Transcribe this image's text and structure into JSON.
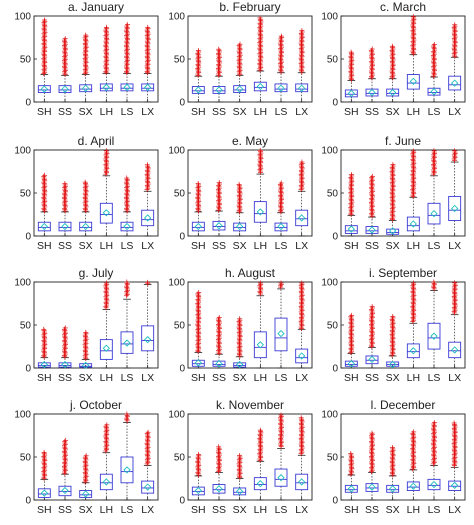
{
  "colors": {
    "box": "#3a3ad6",
    "outlier": "#e01010",
    "mean_marker": "#1fbfbf",
    "whisker": "#222222"
  },
  "chart_data": [
    {
      "type": "box",
      "title": "a. January",
      "categories": [
        "SH",
        "SS",
        "SX",
        "LH",
        "LS",
        "LX"
      ],
      "ylim": [
        0,
        100
      ],
      "yticks": [
        0,
        50,
        100
      ],
      "boxes": [
        {
          "q1": 11,
          "median": 14,
          "q3": 19,
          "whisker_low": 0,
          "whisker_high": 32,
          "mean": 15,
          "outliers_from": 33,
          "outliers_to": 96
        },
        {
          "q1": 11,
          "median": 14,
          "q3": 19,
          "whisker_low": 0,
          "whisker_high": 31,
          "mean": 15,
          "outliers_from": 32,
          "outliers_to": 74
        },
        {
          "q1": 12,
          "median": 15,
          "q3": 20,
          "whisker_low": 0,
          "whisker_high": 32,
          "mean": 16,
          "outliers_from": 33,
          "outliers_to": 78
        },
        {
          "q1": 13,
          "median": 16,
          "q3": 21,
          "whisker_low": 0,
          "whisker_high": 33,
          "mean": 17,
          "outliers_from": 34,
          "outliers_to": 88
        },
        {
          "q1": 13,
          "median": 16,
          "q3": 21,
          "whisker_low": 0,
          "whisker_high": 33,
          "mean": 17,
          "outliers_from": 34,
          "outliers_to": 90
        },
        {
          "q1": 13,
          "median": 16,
          "q3": 21,
          "whisker_low": 0,
          "whisker_high": 33,
          "mean": 17,
          "outliers_from": 34,
          "outliers_to": 88
        }
      ]
    },
    {
      "type": "box",
      "title": "b. February",
      "categories": [
        "SH",
        "SS",
        "SX",
        "LH",
        "LS",
        "LX"
      ],
      "ylim": [
        0,
        100
      ],
      "yticks": [
        0,
        50,
        100
      ],
      "boxes": [
        {
          "q1": 10,
          "median": 13,
          "q3": 18,
          "whisker_low": 0,
          "whisker_high": 30,
          "mean": 14,
          "outliers_from": 31,
          "outliers_to": 60
        },
        {
          "q1": 10,
          "median": 13,
          "q3": 18,
          "whisker_low": 0,
          "whisker_high": 30,
          "mean": 14,
          "outliers_from": 31,
          "outliers_to": 62
        },
        {
          "q1": 11,
          "median": 14,
          "q3": 19,
          "whisker_low": 0,
          "whisker_high": 31,
          "mean": 15,
          "outliers_from": 32,
          "outliers_to": 68
        },
        {
          "q1": 13,
          "median": 17,
          "q3": 23,
          "whisker_low": 0,
          "whisker_high": 36,
          "mean": 18,
          "outliers_from": 37,
          "outliers_to": 98
        },
        {
          "q1": 12,
          "median": 15,
          "q3": 21,
          "whisker_low": 0,
          "whisker_high": 34,
          "mean": 16,
          "outliers_from": 35,
          "outliers_to": 78
        },
        {
          "q1": 12,
          "median": 15,
          "q3": 21,
          "whisker_low": 0,
          "whisker_high": 34,
          "mean": 16,
          "outliers_from": 35,
          "outliers_to": 84
        }
      ]
    },
    {
      "type": "box",
      "title": "c. March",
      "categories": [
        "SH",
        "SS",
        "SX",
        "LH",
        "LS",
        "LX"
      ],
      "ylim": [
        0,
        100
      ],
      "yticks": [
        0,
        50,
        100
      ],
      "boxes": [
        {
          "q1": 6,
          "median": 9,
          "q3": 14,
          "whisker_low": 0,
          "whisker_high": 25,
          "mean": 10,
          "outliers_from": 26,
          "outliers_to": 58
        },
        {
          "q1": 7,
          "median": 10,
          "q3": 15,
          "whisker_low": 0,
          "whisker_high": 27,
          "mean": 11,
          "outliers_from": 28,
          "outliers_to": 62
        },
        {
          "q1": 7,
          "median": 10,
          "q3": 15,
          "whisker_low": 0,
          "whisker_high": 27,
          "mean": 11,
          "outliers_from": 28,
          "outliers_to": 66
        },
        {
          "q1": 15,
          "median": 22,
          "q3": 32,
          "whisker_low": 0,
          "whisker_high": 55,
          "mean": 24,
          "outliers_from": 56,
          "outliers_to": 100
        },
        {
          "q1": 8,
          "median": 11,
          "q3": 16,
          "whisker_low": 0,
          "whisker_high": 29,
          "mean": 12,
          "outliers_from": 30,
          "outliers_to": 68
        },
        {
          "q1": 14,
          "median": 20,
          "q3": 30,
          "whisker_low": 0,
          "whisker_high": 52,
          "mean": 22,
          "outliers_from": 53,
          "outliers_to": 90
        }
      ]
    },
    {
      "type": "box",
      "title": "d. April",
      "categories": [
        "SH",
        "SS",
        "SX",
        "LH",
        "LS",
        "LX"
      ],
      "ylim": [
        0,
        100
      ],
      "yticks": [
        0,
        50,
        100
      ],
      "boxes": [
        {
          "q1": 6,
          "median": 10,
          "q3": 16,
          "whisker_low": 0,
          "whisker_high": 28,
          "mean": 11,
          "outliers_from": 29,
          "outliers_to": 72
        },
        {
          "q1": 6,
          "median": 10,
          "q3": 16,
          "whisker_low": 0,
          "whisker_high": 28,
          "mean": 11,
          "outliers_from": 29,
          "outliers_to": 62
        },
        {
          "q1": 6,
          "median": 10,
          "q3": 16,
          "whisker_low": 0,
          "whisker_high": 28,
          "mean": 11,
          "outliers_from": 29,
          "outliers_to": 64
        },
        {
          "q1": 15,
          "median": 25,
          "q3": 38,
          "whisker_low": 0,
          "whisker_high": 70,
          "mean": 27,
          "outliers_from": 72,
          "outliers_to": 100
        },
        {
          "q1": 6,
          "median": 10,
          "q3": 16,
          "whisker_low": 0,
          "whisker_high": 28,
          "mean": 11,
          "outliers_from": 29,
          "outliers_to": 68
        },
        {
          "q1": 12,
          "median": 19,
          "q3": 30,
          "whisker_low": 0,
          "whisker_high": 52,
          "mean": 21,
          "outliers_from": 54,
          "outliers_to": 84
        }
      ]
    },
    {
      "type": "box",
      "title": "e. May",
      "categories": [
        "SH",
        "SS",
        "SX",
        "LH",
        "LS",
        "LX"
      ],
      "ylim": [
        0,
        100
      ],
      "yticks": [
        0,
        50,
        100
      ],
      "boxes": [
        {
          "q1": 6,
          "median": 10,
          "q3": 16,
          "whisker_low": 0,
          "whisker_high": 28,
          "mean": 11,
          "outliers_from": 29,
          "outliers_to": 62
        },
        {
          "q1": 7,
          "median": 11,
          "q3": 17,
          "whisker_low": 0,
          "whisker_high": 29,
          "mean": 12,
          "outliers_from": 30,
          "outliers_to": 62
        },
        {
          "q1": 6,
          "median": 10,
          "q3": 15,
          "whisker_low": 0,
          "whisker_high": 27,
          "mean": 11,
          "outliers_from": 28,
          "outliers_to": 60
        },
        {
          "q1": 16,
          "median": 26,
          "q3": 40,
          "whisker_low": 0,
          "whisker_high": 72,
          "mean": 28,
          "outliers_from": 74,
          "outliers_to": 100
        },
        {
          "q1": 6,
          "median": 10,
          "q3": 15,
          "whisker_low": 0,
          "whisker_high": 27,
          "mean": 11,
          "outliers_from": 28,
          "outliers_to": 62
        },
        {
          "q1": 12,
          "median": 20,
          "q3": 30,
          "whisker_low": 0,
          "whisker_high": 52,
          "mean": 21,
          "outliers_from": 54,
          "outliers_to": 86
        }
      ]
    },
    {
      "type": "box",
      "title": "f. June",
      "categories": [
        "SH",
        "SS",
        "SX",
        "LH",
        "LS",
        "LX"
      ],
      "ylim": [
        0,
        100
      ],
      "yticks": [
        0,
        50,
        100
      ],
      "boxes": [
        {
          "q1": 3,
          "median": 6,
          "q3": 12,
          "whisker_low": 0,
          "whisker_high": 24,
          "mean": 8,
          "outliers_from": 25,
          "outliers_to": 72
        },
        {
          "q1": 3,
          "median": 6,
          "q3": 11,
          "whisker_low": 0,
          "whisker_high": 22,
          "mean": 7,
          "outliers_from": 23,
          "outliers_to": 70
        },
        {
          "q1": 2,
          "median": 4,
          "q3": 8,
          "whisker_low": 0,
          "whisker_high": 18,
          "mean": 6,
          "outliers_from": 19,
          "outliers_to": 84
        },
        {
          "q1": 6,
          "median": 12,
          "q3": 22,
          "whisker_low": 0,
          "whisker_high": 45,
          "mean": 14,
          "outliers_from": 46,
          "outliers_to": 100
        },
        {
          "q1": 14,
          "median": 24,
          "q3": 38,
          "whisker_low": 0,
          "whisker_high": 70,
          "mean": 26,
          "outliers_from": 72,
          "outliers_to": 100
        },
        {
          "q1": 18,
          "median": 30,
          "q3": 46,
          "whisker_low": 0,
          "whisker_high": 86,
          "mean": 32,
          "outliers_from": 88,
          "outliers_to": 100
        }
      ]
    },
    {
      "type": "box",
      "title": "g. July",
      "categories": [
        "SH",
        "SS",
        "SX",
        "LH",
        "LS",
        "LX"
      ],
      "ylim": [
        0,
        100
      ],
      "yticks": [
        0,
        50,
        100
      ],
      "boxes": [
        {
          "q1": 1,
          "median": 3,
          "q3": 6,
          "whisker_low": 0,
          "whisker_high": 12,
          "mean": 4,
          "outliers_from": 13,
          "outliers_to": 45
        },
        {
          "q1": 1,
          "median": 3,
          "q3": 6,
          "whisker_low": 0,
          "whisker_high": 12,
          "mean": 4,
          "outliers_from": 13,
          "outliers_to": 48
        },
        {
          "q1": 1,
          "median": 2,
          "q3": 5,
          "whisker_low": 0,
          "whisker_high": 10,
          "mean": 3,
          "outliers_from": 11,
          "outliers_to": 42
        },
        {
          "q1": 10,
          "median": 20,
          "q3": 33,
          "whisker_low": 0,
          "whisker_high": 68,
          "mean": 23,
          "outliers_from": 70,
          "outliers_to": 100
        },
        {
          "q1": 17,
          "median": 28,
          "q3": 42,
          "whisker_low": 0,
          "whisker_high": 80,
          "mean": 29,
          "outliers_from": 84,
          "outliers_to": 100
        },
        {
          "q1": 20,
          "median": 32,
          "q3": 49,
          "whisker_low": 0,
          "whisker_high": 97,
          "mean": 33,
          "outliers_from": 98,
          "outliers_to": 100
        }
      ]
    },
    {
      "type": "box",
      "title": "h. August",
      "categories": [
        "SH",
        "SS",
        "SX",
        "LH",
        "LS",
        "LX"
      ],
      "ylim": [
        0,
        100
      ],
      "yticks": [
        0,
        50,
        100
      ],
      "boxes": [
        {
          "q1": 2,
          "median": 5,
          "q3": 9,
          "whisker_low": 0,
          "whisker_high": 18,
          "mean": 6,
          "outliers_from": 19,
          "outliers_to": 88
        },
        {
          "q1": 2,
          "median": 4,
          "q3": 8,
          "whisker_low": 0,
          "whisker_high": 16,
          "mean": 5,
          "outliers_from": 17,
          "outliers_to": 60
        },
        {
          "q1": 1,
          "median": 3,
          "q3": 6,
          "whisker_low": 0,
          "whisker_high": 13,
          "mean": 4,
          "outliers_from": 14,
          "outliers_to": 58
        },
        {
          "q1": 12,
          "median": 24,
          "q3": 42,
          "whisker_low": 0,
          "whisker_high": 84,
          "mean": 27,
          "outliers_from": 86,
          "outliers_to": 100
        },
        {
          "q1": 20,
          "median": 35,
          "q3": 58,
          "whisker_low": 0,
          "whisker_high": 92,
          "mean": 40,
          "outliers_from": 94,
          "outliers_to": 100
        },
        {
          "q1": 6,
          "median": 12,
          "q3": 22,
          "whisker_low": 0,
          "whisker_high": 45,
          "mean": 14,
          "outliers_from": 46,
          "outliers_to": 100
        }
      ]
    },
    {
      "type": "box",
      "title": "i. September",
      "categories": [
        "SH",
        "SS",
        "SX",
        "LH",
        "LS",
        "LX"
      ],
      "ylim": [
        0,
        100
      ],
      "yticks": [
        0,
        50,
        100
      ],
      "boxes": [
        {
          "q1": 2,
          "median": 4,
          "q3": 8,
          "whisker_low": 0,
          "whisker_high": 17,
          "mean": 5,
          "outliers_from": 18,
          "outliers_to": 62
        },
        {
          "q1": 5,
          "median": 9,
          "q3": 14,
          "whisker_low": 0,
          "whisker_high": 24,
          "mean": 10,
          "outliers_from": 25,
          "outliers_to": 72
        },
        {
          "q1": 2,
          "median": 4,
          "q3": 7,
          "whisker_low": 0,
          "whisker_high": 14,
          "mean": 4,
          "outliers_from": 15,
          "outliers_to": 60
        },
        {
          "q1": 12,
          "median": 19,
          "q3": 28,
          "whisker_low": 0,
          "whisker_high": 52,
          "mean": 20,
          "outliers_from": 54,
          "outliers_to": 100
        },
        {
          "q1": 22,
          "median": 35,
          "q3": 52,
          "whisker_low": 0,
          "whisker_high": 90,
          "mean": 37,
          "outliers_from": 92,
          "outliers_to": 100
        },
        {
          "q1": 12,
          "median": 20,
          "q3": 30,
          "whisker_low": 0,
          "whisker_high": 62,
          "mean": 21,
          "outliers_from": 64,
          "outliers_to": 100
        }
      ]
    },
    {
      "type": "box",
      "title": "j. October",
      "categories": [
        "SH",
        "SS",
        "SX",
        "LH",
        "LS",
        "LX"
      ],
      "ylim": [
        0,
        100
      ],
      "yticks": [
        0,
        50,
        100
      ],
      "boxes": [
        {
          "q1": 3,
          "median": 7,
          "q3": 13,
          "whisker_low": 0,
          "whisker_high": 24,
          "mean": 8,
          "outliers_from": 25,
          "outliers_to": 56
        },
        {
          "q1": 5,
          "median": 10,
          "q3": 16,
          "whisker_low": 0,
          "whisker_high": 30,
          "mean": 11,
          "outliers_from": 31,
          "outliers_to": 70
        },
        {
          "q1": 3,
          "median": 6,
          "q3": 11,
          "whisker_low": 0,
          "whisker_high": 20,
          "mean": 7,
          "outliers_from": 21,
          "outliers_to": 52
        },
        {
          "q1": 12,
          "median": 20,
          "q3": 30,
          "whisker_low": 0,
          "whisker_high": 55,
          "mean": 21,
          "outliers_from": 57,
          "outliers_to": 88
        },
        {
          "q1": 20,
          "median": 33,
          "q3": 50,
          "whisker_low": 0,
          "whisker_high": 90,
          "mean": 35,
          "outliers_from": 92,
          "outliers_to": 100
        },
        {
          "q1": 8,
          "median": 14,
          "q3": 22,
          "whisker_low": 0,
          "whisker_high": 40,
          "mean": 15,
          "outliers_from": 42,
          "outliers_to": 80
        }
      ]
    },
    {
      "type": "box",
      "title": "k. November",
      "categories": [
        "SH",
        "SS",
        "SX",
        "LH",
        "LS",
        "LX"
      ],
      "ylim": [
        0,
        100
      ],
      "yticks": [
        0,
        50,
        100
      ],
      "boxes": [
        {
          "q1": 6,
          "median": 10,
          "q3": 15,
          "whisker_low": 0,
          "whisker_high": 28,
          "mean": 11,
          "outliers_from": 29,
          "outliers_to": 54
        },
        {
          "q1": 8,
          "median": 12,
          "q3": 18,
          "whisker_low": 0,
          "whisker_high": 32,
          "mean": 13,
          "outliers_from": 33,
          "outliers_to": 62
        },
        {
          "q1": 6,
          "median": 9,
          "q3": 14,
          "whisker_low": 0,
          "whisker_high": 25,
          "mean": 10,
          "outliers_from": 26,
          "outliers_to": 52
        },
        {
          "q1": 12,
          "median": 18,
          "q3": 26,
          "whisker_low": 0,
          "whisker_high": 45,
          "mean": 19,
          "outliers_from": 46,
          "outliers_to": 82
        },
        {
          "q1": 16,
          "median": 24,
          "q3": 36,
          "whisker_low": 0,
          "whisker_high": 60,
          "mean": 26,
          "outliers_from": 62,
          "outliers_to": 100
        },
        {
          "q1": 12,
          "median": 20,
          "q3": 30,
          "whisker_low": 0,
          "whisker_high": 52,
          "mean": 21,
          "outliers_from": 54,
          "outliers_to": 96
        }
      ]
    },
    {
      "type": "box",
      "title": "l. December",
      "categories": [
        "SH",
        "SS",
        "SX",
        "LH",
        "LS",
        "LX"
      ],
      "ylim": [
        0,
        100
      ],
      "yticks": [
        0,
        50,
        100
      ],
      "boxes": [
        {
          "q1": 9,
          "median": 12,
          "q3": 17,
          "whisker_low": 0,
          "whisker_high": 29,
          "mean": 13,
          "outliers_from": 30,
          "outliers_to": 54
        },
        {
          "q1": 10,
          "median": 14,
          "q3": 19,
          "whisker_low": 0,
          "whisker_high": 32,
          "mean": 15,
          "outliers_from": 33,
          "outliers_to": 78
        },
        {
          "q1": 9,
          "median": 12,
          "q3": 17,
          "whisker_low": 0,
          "whisker_high": 28,
          "mean": 13,
          "outliers_from": 29,
          "outliers_to": 62
        },
        {
          "q1": 11,
          "median": 15,
          "q3": 21,
          "whisker_low": 0,
          "whisker_high": 35,
          "mean": 16,
          "outliers_from": 36,
          "outliers_to": 80
        },
        {
          "q1": 12,
          "median": 17,
          "q3": 24,
          "whisker_low": 0,
          "whisker_high": 40,
          "mean": 18,
          "outliers_from": 42,
          "outliers_to": 90
        },
        {
          "q1": 11,
          "median": 16,
          "q3": 22,
          "whisker_low": 0,
          "whisker_high": 38,
          "mean": 17,
          "outliers_from": 40,
          "outliers_to": 90
        }
      ]
    }
  ]
}
